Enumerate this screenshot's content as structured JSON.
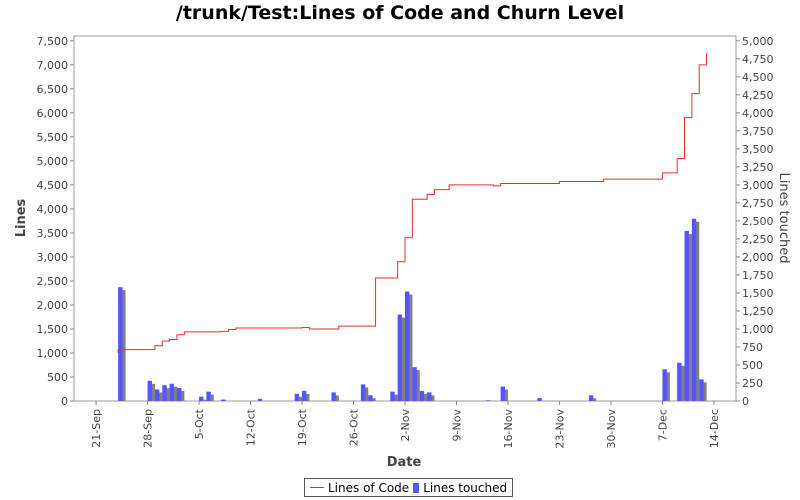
{
  "chart_data": {
    "type": "bar+line",
    "title": "/trunk/Test:Lines of Code and Churn Level",
    "xlabel": "Date",
    "ylabel": "Lines",
    "y2label": "Lines touched",
    "x_ticks": [
      "21-Sep",
      "28-Sep",
      "5-Oct",
      "12-Oct",
      "19-Oct",
      "26-Oct",
      "2-Nov",
      "9-Nov",
      "16-Nov",
      "23-Nov",
      "30-Nov",
      "7-Dec",
      "14-Dec"
    ],
    "y_ticks": [
      "0",
      "500",
      "1,000",
      "1,500",
      "2,000",
      "2,500",
      "3,000",
      "3,500",
      "4,000",
      "4,500",
      "5,000",
      "5,500",
      "6,000",
      "6,500",
      "7,000",
      "7,500"
    ],
    "y2_ticks": [
      "0",
      "250",
      "500",
      "750",
      "1,000",
      "1,250",
      "1,500",
      "1,750",
      "2,000",
      "2,250",
      "2,500",
      "2,750",
      "3,000",
      "3,250",
      "3,500",
      "3,750",
      "4,000",
      "4,250",
      "4,500",
      "4,750",
      "5,000"
    ],
    "ylim": [
      0,
      7600
    ],
    "y2lim": [
      0,
      5066
    ],
    "xlim": [
      "2007-09-18",
      "2007-12-17"
    ],
    "grid": false,
    "legend": "bottom",
    "series": [
      {
        "name": "Lines of Code",
        "type": "step-line",
        "color": "#e03030",
        "points": [
          [
            "2007-09-24",
            1000
          ],
          [
            "2007-09-24",
            1070
          ],
          [
            "2007-09-29",
            1080
          ],
          [
            "2007-09-29",
            1150
          ],
          [
            "2007-09-30",
            1250
          ],
          [
            "2007-10-01",
            1280
          ],
          [
            "2007-10-02",
            1380
          ],
          [
            "2007-10-03",
            1440
          ],
          [
            "2007-10-08",
            1450
          ],
          [
            "2007-10-09",
            1490
          ],
          [
            "2007-10-10",
            1520
          ],
          [
            "2007-10-19",
            1530
          ],
          [
            "2007-10-20",
            1500
          ],
          [
            "2007-10-24",
            1560
          ],
          [
            "2007-10-29",
            1580
          ],
          [
            "2007-10-29",
            2560
          ],
          [
            "2007-11-01",
            2600
          ],
          [
            "2007-11-01",
            2900
          ],
          [
            "2007-11-02",
            3200
          ],
          [
            "2007-11-02",
            3400
          ],
          [
            "2007-11-03",
            4100
          ],
          [
            "2007-11-03",
            4200
          ],
          [
            "2007-11-05",
            4300
          ],
          [
            "2007-11-06",
            4400
          ],
          [
            "2007-11-08",
            4500
          ],
          [
            "2007-11-14",
            4480
          ],
          [
            "2007-11-15",
            4530
          ],
          [
            "2007-11-23",
            4570
          ],
          [
            "2007-11-29",
            4620
          ],
          [
            "2007-12-07",
            4750
          ],
          [
            "2007-12-09",
            5050
          ],
          [
            "2007-12-10",
            5900
          ],
          [
            "2007-12-11",
            6400
          ],
          [
            "2007-12-12",
            7000
          ],
          [
            "2007-12-13",
            7250
          ]
        ]
      },
      {
        "name": "Lines touched",
        "type": "bar",
        "axis": "right",
        "color": "#5555ff",
        "shadow_color": "#808080",
        "bars": [
          [
            "2007-09-24",
            1580
          ],
          [
            "2007-09-28",
            280
          ],
          [
            "2007-09-29",
            160
          ],
          [
            "2007-09-30",
            220
          ],
          [
            "2007-10-01",
            240
          ],
          [
            "2007-10-02",
            180
          ],
          [
            "2007-10-05",
            60
          ],
          [
            "2007-10-06",
            130
          ],
          [
            "2007-10-08",
            20
          ],
          [
            "2007-10-13",
            30
          ],
          [
            "2007-10-18",
            100
          ],
          [
            "2007-10-19",
            140
          ],
          [
            "2007-10-23",
            120
          ],
          [
            "2007-10-27",
            230
          ],
          [
            "2007-10-28",
            80
          ],
          [
            "2007-10-31",
            130
          ],
          [
            "2007-11-01",
            1200
          ],
          [
            "2007-11-02",
            1520
          ],
          [
            "2007-11-03",
            470
          ],
          [
            "2007-11-04",
            140
          ],
          [
            "2007-11-05",
            120
          ],
          [
            "2007-11-13",
            10
          ],
          [
            "2007-11-15",
            200
          ],
          [
            "2007-11-20",
            40
          ],
          [
            "2007-11-27",
            80
          ],
          [
            "2007-12-07",
            440
          ],
          [
            "2007-12-09",
            530
          ],
          [
            "2007-12-10",
            2360
          ],
          [
            "2007-12-11",
            2530
          ],
          [
            "2007-12-12",
            300
          ]
        ]
      }
    ]
  }
}
